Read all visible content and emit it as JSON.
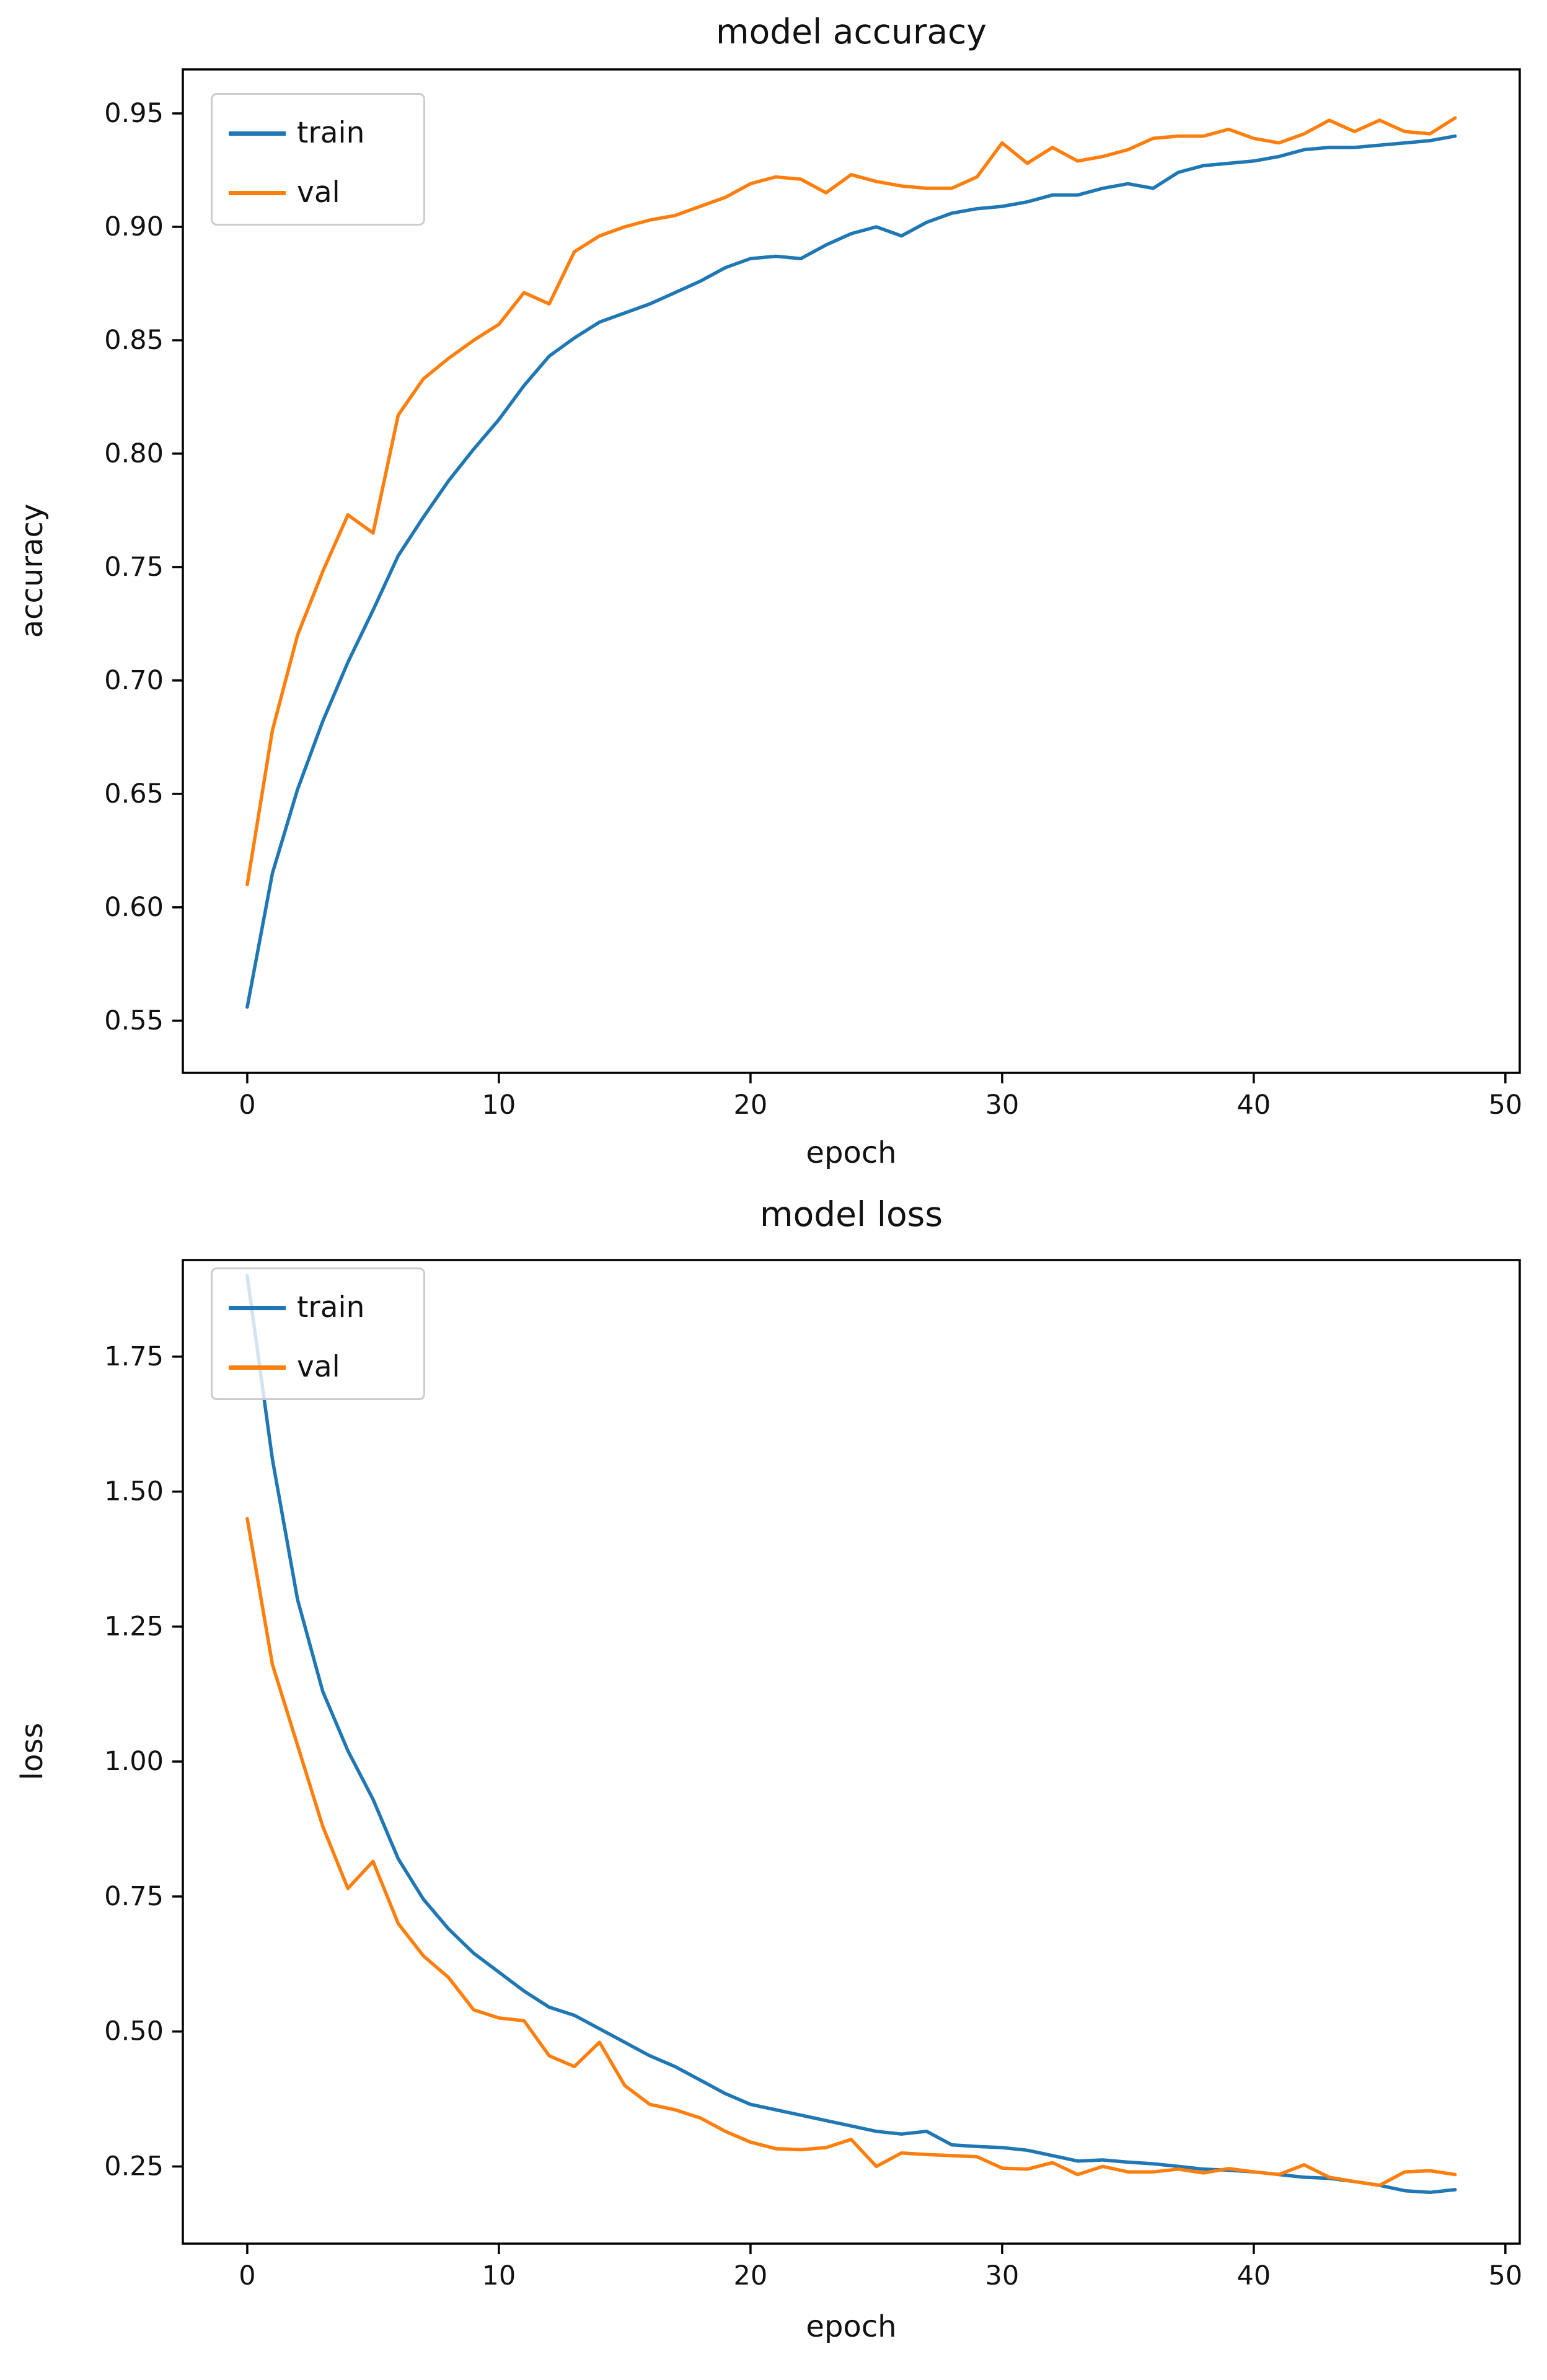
{
  "figure": {
    "background": "#ffffff",
    "axis_color": "#000000",
    "legend_border_color": "#cccccc"
  },
  "chart_data": [
    {
      "type": "line",
      "title": "model accuracy",
      "xlabel": "epoch",
      "ylabel": "accuracy",
      "grid": false,
      "legend_position": "upper left",
      "xlim": [
        -2.56,
        50.57
      ],
      "ylim": [
        0.527,
        0.9694
      ],
      "xticks": {
        "values": [
          0,
          10,
          20,
          30,
          40,
          50
        ],
        "labels": [
          "0",
          "10",
          "20",
          "30",
          "40",
          "50"
        ]
      },
      "yticks": {
        "values": [
          0.55,
          0.6,
          0.65,
          0.7,
          0.75,
          0.8,
          0.85,
          0.9,
          0.95
        ],
        "labels": [
          "0.55",
          "0.60",
          "0.65",
          "0.70",
          "0.75",
          "0.80",
          "0.85",
          "0.90",
          "0.95"
        ]
      },
      "x": [
        0,
        1,
        2,
        3,
        4,
        5,
        6,
        7,
        8,
        9,
        10,
        11,
        12,
        13,
        14,
        15,
        16,
        17,
        18,
        19,
        20,
        21,
        22,
        23,
        24,
        25,
        26,
        27,
        28,
        29,
        30,
        31,
        32,
        33,
        34,
        35,
        36,
        37,
        38,
        39,
        40,
        41,
        42,
        43,
        44,
        45,
        46,
        47,
        48
      ],
      "series": [
        {
          "name": "train",
          "color": "#1f77b4",
          "values": [
            0.556,
            0.615,
            0.652,
            0.682,
            0.708,
            0.731,
            0.755,
            0.772,
            0.788,
            0.802,
            0.815,
            0.83,
            0.843,
            0.851,
            0.858,
            0.862,
            0.866,
            0.871,
            0.876,
            0.882,
            0.886,
            0.887,
            0.886,
            0.892,
            0.897,
            0.9,
            0.896,
            0.902,
            0.906,
            0.908,
            0.909,
            0.911,
            0.914,
            0.914,
            0.917,
            0.919,
            0.917,
            0.924,
            0.927,
            0.928,
            0.929,
            0.931,
            0.934,
            0.935,
            0.935,
            0.936,
            0.937,
            0.938,
            0.94
          ]
        },
        {
          "name": "val",
          "color": "#ff7f0e",
          "values": [
            0.61,
            0.678,
            0.72,
            0.748,
            0.773,
            0.765,
            0.817,
            0.833,
            0.842,
            0.85,
            0.857,
            0.871,
            0.866,
            0.889,
            0.896,
            0.9,
            0.903,
            0.905,
            0.909,
            0.913,
            0.919,
            0.922,
            0.921,
            0.915,
            0.923,
            0.92,
            0.918,
            0.917,
            0.917,
            0.922,
            0.937,
            0.928,
            0.935,
            0.929,
            0.931,
            0.934,
            0.939,
            0.94,
            0.94,
            0.943,
            0.939,
            0.937,
            0.941,
            0.947,
            0.942,
            0.947,
            0.942,
            0.941,
            0.948
          ]
        }
      ]
    },
    {
      "type": "line",
      "title": "model loss",
      "xlabel": "epoch",
      "ylabel": "loss",
      "grid": false,
      "legend_position": "upper left",
      "xlim": [
        -2.56,
        50.57
      ],
      "ylim": [
        0.107,
        1.929
      ],
      "xticks": {
        "values": [
          0,
          10,
          20,
          30,
          40,
          50
        ],
        "labels": [
          "0",
          "10",
          "20",
          "30",
          "40",
          "50"
        ]
      },
      "yticks": {
        "values": [
          0.25,
          0.5,
          0.75,
          1.0,
          1.25,
          1.5,
          1.75
        ],
        "labels": [
          "0.25",
          "0.50",
          "0.75",
          "1.00",
          "1.25",
          "1.50",
          "1.75"
        ]
      },
      "x": [
        0,
        1,
        2,
        3,
        4,
        5,
        6,
        7,
        8,
        9,
        10,
        11,
        12,
        13,
        14,
        15,
        16,
        17,
        18,
        19,
        20,
        21,
        22,
        23,
        24,
        25,
        26,
        27,
        28,
        29,
        30,
        31,
        32,
        33,
        34,
        35,
        36,
        37,
        38,
        39,
        40,
        41,
        42,
        43,
        44,
        45,
        46,
        47,
        48
      ],
      "series": [
        {
          "name": "train",
          "color": "#1f77b4",
          "values": [
            1.9,
            1.56,
            1.3,
            1.13,
            1.02,
            0.93,
            0.82,
            0.745,
            0.69,
            0.645,
            0.61,
            0.575,
            0.545,
            0.53,
            0.505,
            0.48,
            0.455,
            0.435,
            0.41,
            0.385,
            0.365,
            0.355,
            0.345,
            0.335,
            0.325,
            0.315,
            0.31,
            0.315,
            0.29,
            0.287,
            0.285,
            0.28,
            0.27,
            0.26,
            0.262,
            0.258,
            0.255,
            0.25,
            0.245,
            0.243,
            0.24,
            0.235,
            0.23,
            0.228,
            0.222,
            0.215,
            0.205,
            0.202,
            0.207
          ]
        },
        {
          "name": "val",
          "color": "#ff7f0e",
          "values": [
            1.45,
            1.18,
            1.03,
            0.88,
            0.765,
            0.815,
            0.7,
            0.64,
            0.6,
            0.54,
            0.525,
            0.52,
            0.455,
            0.435,
            0.48,
            0.4,
            0.365,
            0.355,
            0.34,
            0.315,
            0.295,
            0.283,
            0.281,
            0.285,
            0.3,
            0.25,
            0.275,
            0.272,
            0.27,
            0.268,
            0.247,
            0.245,
            0.257,
            0.235,
            0.25,
            0.24,
            0.24,
            0.245,
            0.238,
            0.246,
            0.24,
            0.235,
            0.253,
            0.23,
            0.222,
            0.215,
            0.24,
            0.242,
            0.235
          ]
        }
      ]
    }
  ]
}
